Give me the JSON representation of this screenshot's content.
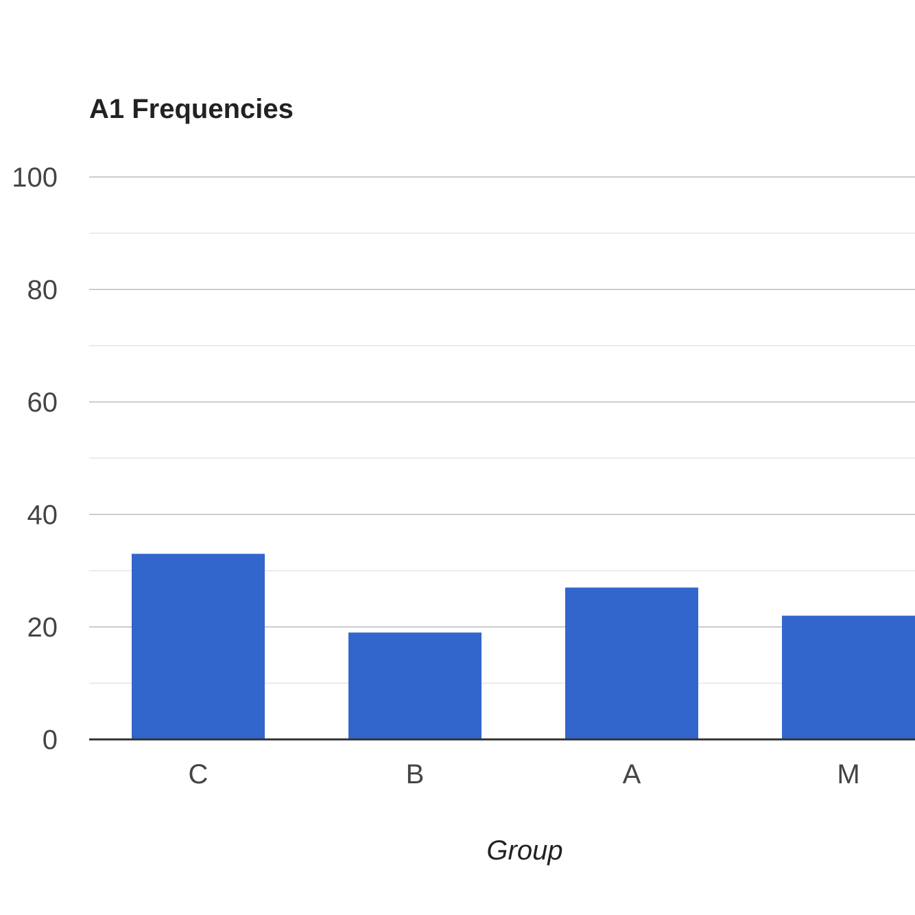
{
  "chart_data": {
    "type": "bar",
    "title": "A1 Frequencies",
    "xlabel": "Group",
    "ylabel": "",
    "categories": [
      "C",
      "B",
      "A",
      "M"
    ],
    "values": [
      33,
      19,
      27,
      22
    ],
    "ylim": [
      0,
      100
    ],
    "yticks": [
      "0",
      "20",
      "40",
      "60",
      "80",
      "100"
    ],
    "minor_gridlines": true,
    "grid": true,
    "legend": "none",
    "colors": {
      "bar": "#3366cc",
      "major_grid": "#cccccc",
      "minor_grid": "#ebebeb",
      "baseline": "#333333"
    }
  }
}
